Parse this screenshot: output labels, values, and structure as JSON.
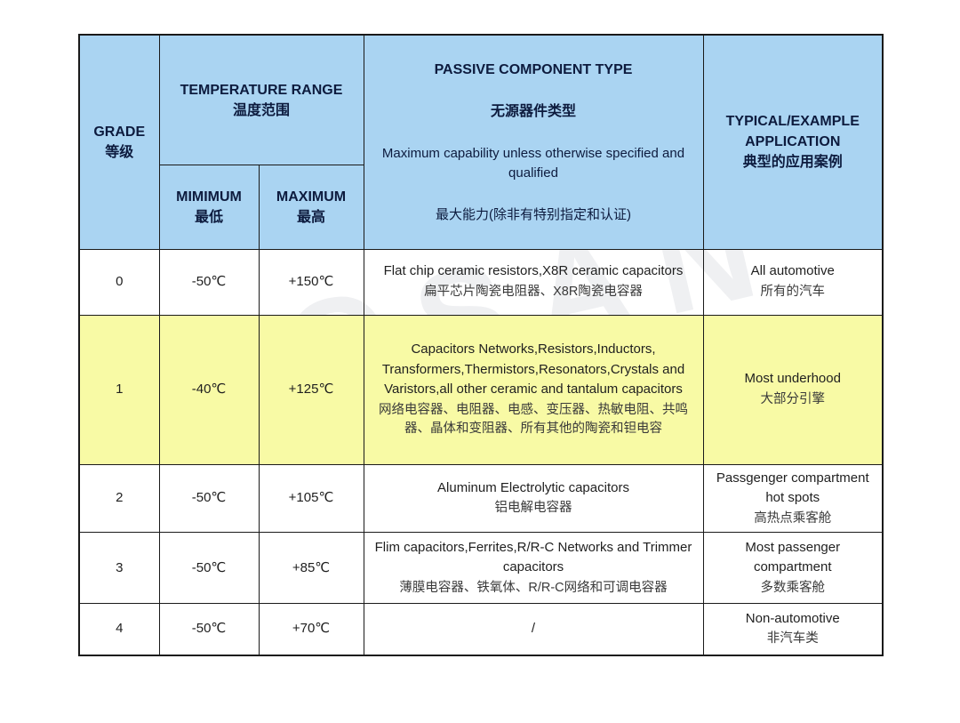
{
  "watermark": {
    "text": "FOSAN"
  },
  "colors": {
    "header_bg": "#aad4f2",
    "header_text": "#0d1b3e",
    "highlight_bg": "#f8faa5",
    "border": "#1a1a1a",
    "body_text": "#1f1f1f"
  },
  "table": {
    "header": {
      "grade": "GRADE\n等级",
      "temp_range": "TEMPERATURE RANGE\n温度范围",
      "min": "MIMIMUM\n最低",
      "max": "MAXIMUM\n最高",
      "passive_title": "PASSIVE COMPONENT TYPE",
      "passive_title_cn": "无源器件类型",
      "passive_sub": "Maximum capability unless otherwise specified and qualified",
      "passive_sub_cn": "最大能力(除非有特别指定和认证)",
      "typical": "TYPICAL/EXAMPLE\nAPPLICATION\n典型的应用案例"
    },
    "rows": [
      {
        "grade": "0",
        "min": "-50℃",
        "max": "+150℃",
        "component_en": "Flat chip ceramic resistors,X8R ceramic capacitors",
        "component_cn": "扁平芯片陶瓷电阻器、X8R陶瓷电容器",
        "application_en": "All automotive",
        "application_cn": "所有的汽车",
        "highlight": false
      },
      {
        "grade": "1",
        "min": "-40℃",
        "max": "+125℃",
        "component_en": "Capacitors Networks,Resistors,Inductors, Transformers,Thermistors,Resonators,Crystals and Varistors,all other ceramic and tantalum capacitors",
        "component_cn": "网络电容器、电阻器、电感、变压器、热敏电阻、共鸣器、晶体和变阻器、所有其他的陶瓷和钽电容",
        "application_en": "Most underhood",
        "application_cn": "大部分引擎",
        "highlight": true
      },
      {
        "grade": "2",
        "min": "-50℃",
        "max": "+105℃",
        "component_en": "Aluminum Electrolytic capacitors",
        "component_cn": "铝电解电容器",
        "application_en": "Passgenger compartment hot spots",
        "application_cn": "高热点乘客舱",
        "highlight": false
      },
      {
        "grade": "3",
        "min": "-50℃",
        "max": "+85℃",
        "component_en": "Flim capacitors,Ferrites,R/R-C Networks and Trimmer capacitors",
        "component_cn": "薄膜电容器、铁氧体、R/R-C网络和可调电容器",
        "application_en": "Most passenger compartment",
        "application_cn": "多数乘客舱",
        "highlight": false
      },
      {
        "grade": "4",
        "min": "-50℃",
        "max": "+70℃",
        "component_en": "/",
        "component_cn": "",
        "application_en": "Non-automotive",
        "application_cn": "非汽车类",
        "highlight": false
      }
    ]
  }
}
